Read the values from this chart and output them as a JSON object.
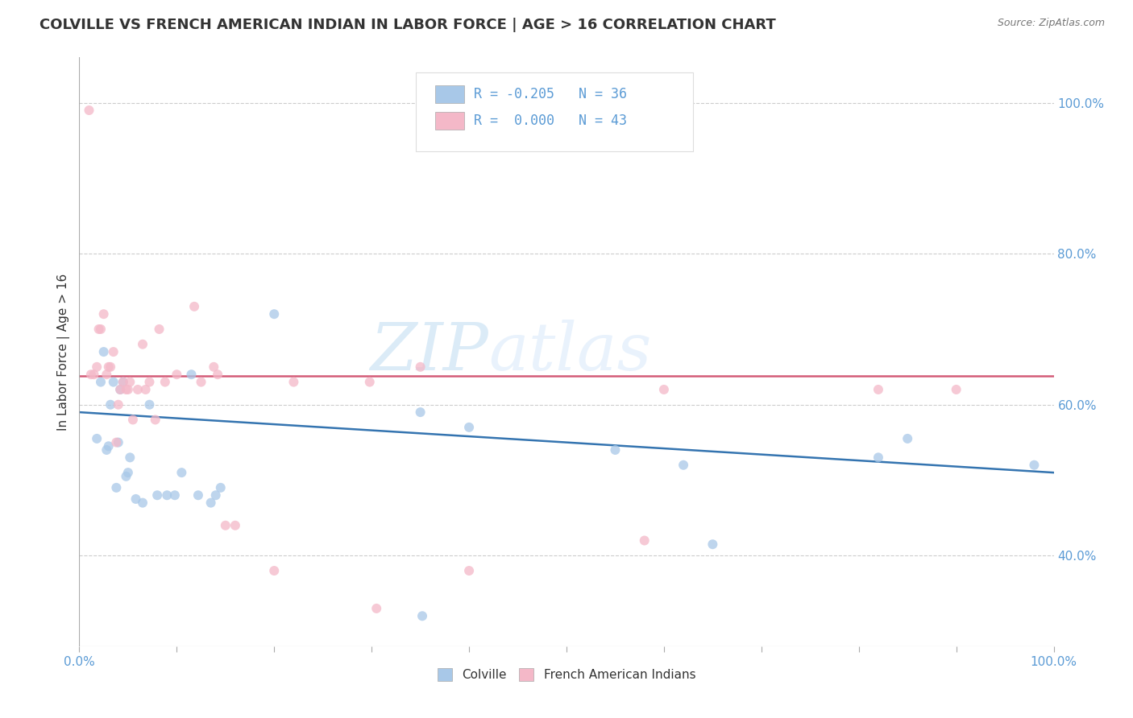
{
  "title": "COLVILLE VS FRENCH AMERICAN INDIAN IN LABOR FORCE | AGE > 16 CORRELATION CHART",
  "source": "Source: ZipAtlas.com",
  "ylabel": "In Labor Force | Age > 16",
  "xlim": [
    0.0,
    1.0
  ],
  "ylim": [
    0.28,
    1.06
  ],
  "yticks_right": [
    1.0,
    0.8,
    0.6,
    0.4
  ],
  "ytick_labels_right": [
    "100.0%",
    "80.0%",
    "60.0%",
    "40.0%"
  ],
  "blue_color": "#a8c8e8",
  "pink_color": "#f4b8c8",
  "blue_line_color": "#3474b0",
  "pink_line_color": "#d45c78",
  "watermark": "ZIPatlas",
  "colville_points_x": [
    0.018,
    0.022,
    0.025,
    0.028,
    0.03,
    0.032,
    0.035,
    0.038,
    0.04,
    0.042,
    0.045,
    0.048,
    0.05,
    0.052,
    0.058,
    0.065,
    0.072,
    0.08,
    0.09,
    0.098,
    0.105,
    0.115,
    0.122,
    0.135,
    0.14,
    0.145,
    0.2,
    0.35,
    0.352,
    0.4,
    0.55,
    0.62,
    0.65,
    0.82,
    0.85,
    0.98
  ],
  "colville_points_y": [
    0.555,
    0.63,
    0.67,
    0.54,
    0.545,
    0.6,
    0.63,
    0.49,
    0.55,
    0.62,
    0.63,
    0.505,
    0.51,
    0.53,
    0.475,
    0.47,
    0.6,
    0.48,
    0.48,
    0.48,
    0.51,
    0.64,
    0.48,
    0.47,
    0.48,
    0.49,
    0.72,
    0.59,
    0.32,
    0.57,
    0.54,
    0.52,
    0.415,
    0.53,
    0.555,
    0.52
  ],
  "french_points_x": [
    0.01,
    0.012,
    0.015,
    0.018,
    0.02,
    0.022,
    0.025,
    0.028,
    0.03,
    0.032,
    0.035,
    0.038,
    0.04,
    0.042,
    0.045,
    0.048,
    0.05,
    0.052,
    0.055,
    0.06,
    0.065,
    0.068,
    0.072,
    0.078,
    0.082,
    0.088,
    0.1,
    0.118,
    0.125,
    0.138,
    0.142,
    0.15,
    0.16,
    0.2,
    0.22,
    0.298,
    0.305,
    0.35,
    0.4,
    0.58,
    0.6,
    0.82,
    0.9
  ],
  "french_points_y": [
    0.99,
    0.64,
    0.64,
    0.65,
    0.7,
    0.7,
    0.72,
    0.64,
    0.65,
    0.65,
    0.67,
    0.55,
    0.6,
    0.62,
    0.63,
    0.62,
    0.62,
    0.63,
    0.58,
    0.62,
    0.68,
    0.62,
    0.63,
    0.58,
    0.7,
    0.63,
    0.64,
    0.73,
    0.63,
    0.65,
    0.64,
    0.44,
    0.44,
    0.38,
    0.63,
    0.63,
    0.33,
    0.65,
    0.38,
    0.42,
    0.62,
    0.62,
    0.62
  ],
  "blue_line_x": [
    0.0,
    1.0
  ],
  "blue_line_y_start": 0.59,
  "blue_line_y_end": 0.51,
  "pink_line_y": 0.638,
  "gridline_color": "#cccccc",
  "gridline_y": [
    1.0,
    0.8,
    0.6,
    0.4
  ],
  "title_fontsize": 13,
  "axis_fontsize": 11,
  "tick_fontsize": 11,
  "marker_size": 75,
  "tick_color": "#5b9bd5",
  "legend_text_color": "#5b9bd5",
  "legend_r1": "R = -0.205",
  "legend_n1": "N = 36",
  "legend_r2": "R =  0.000",
  "legend_n2": "N = 43"
}
